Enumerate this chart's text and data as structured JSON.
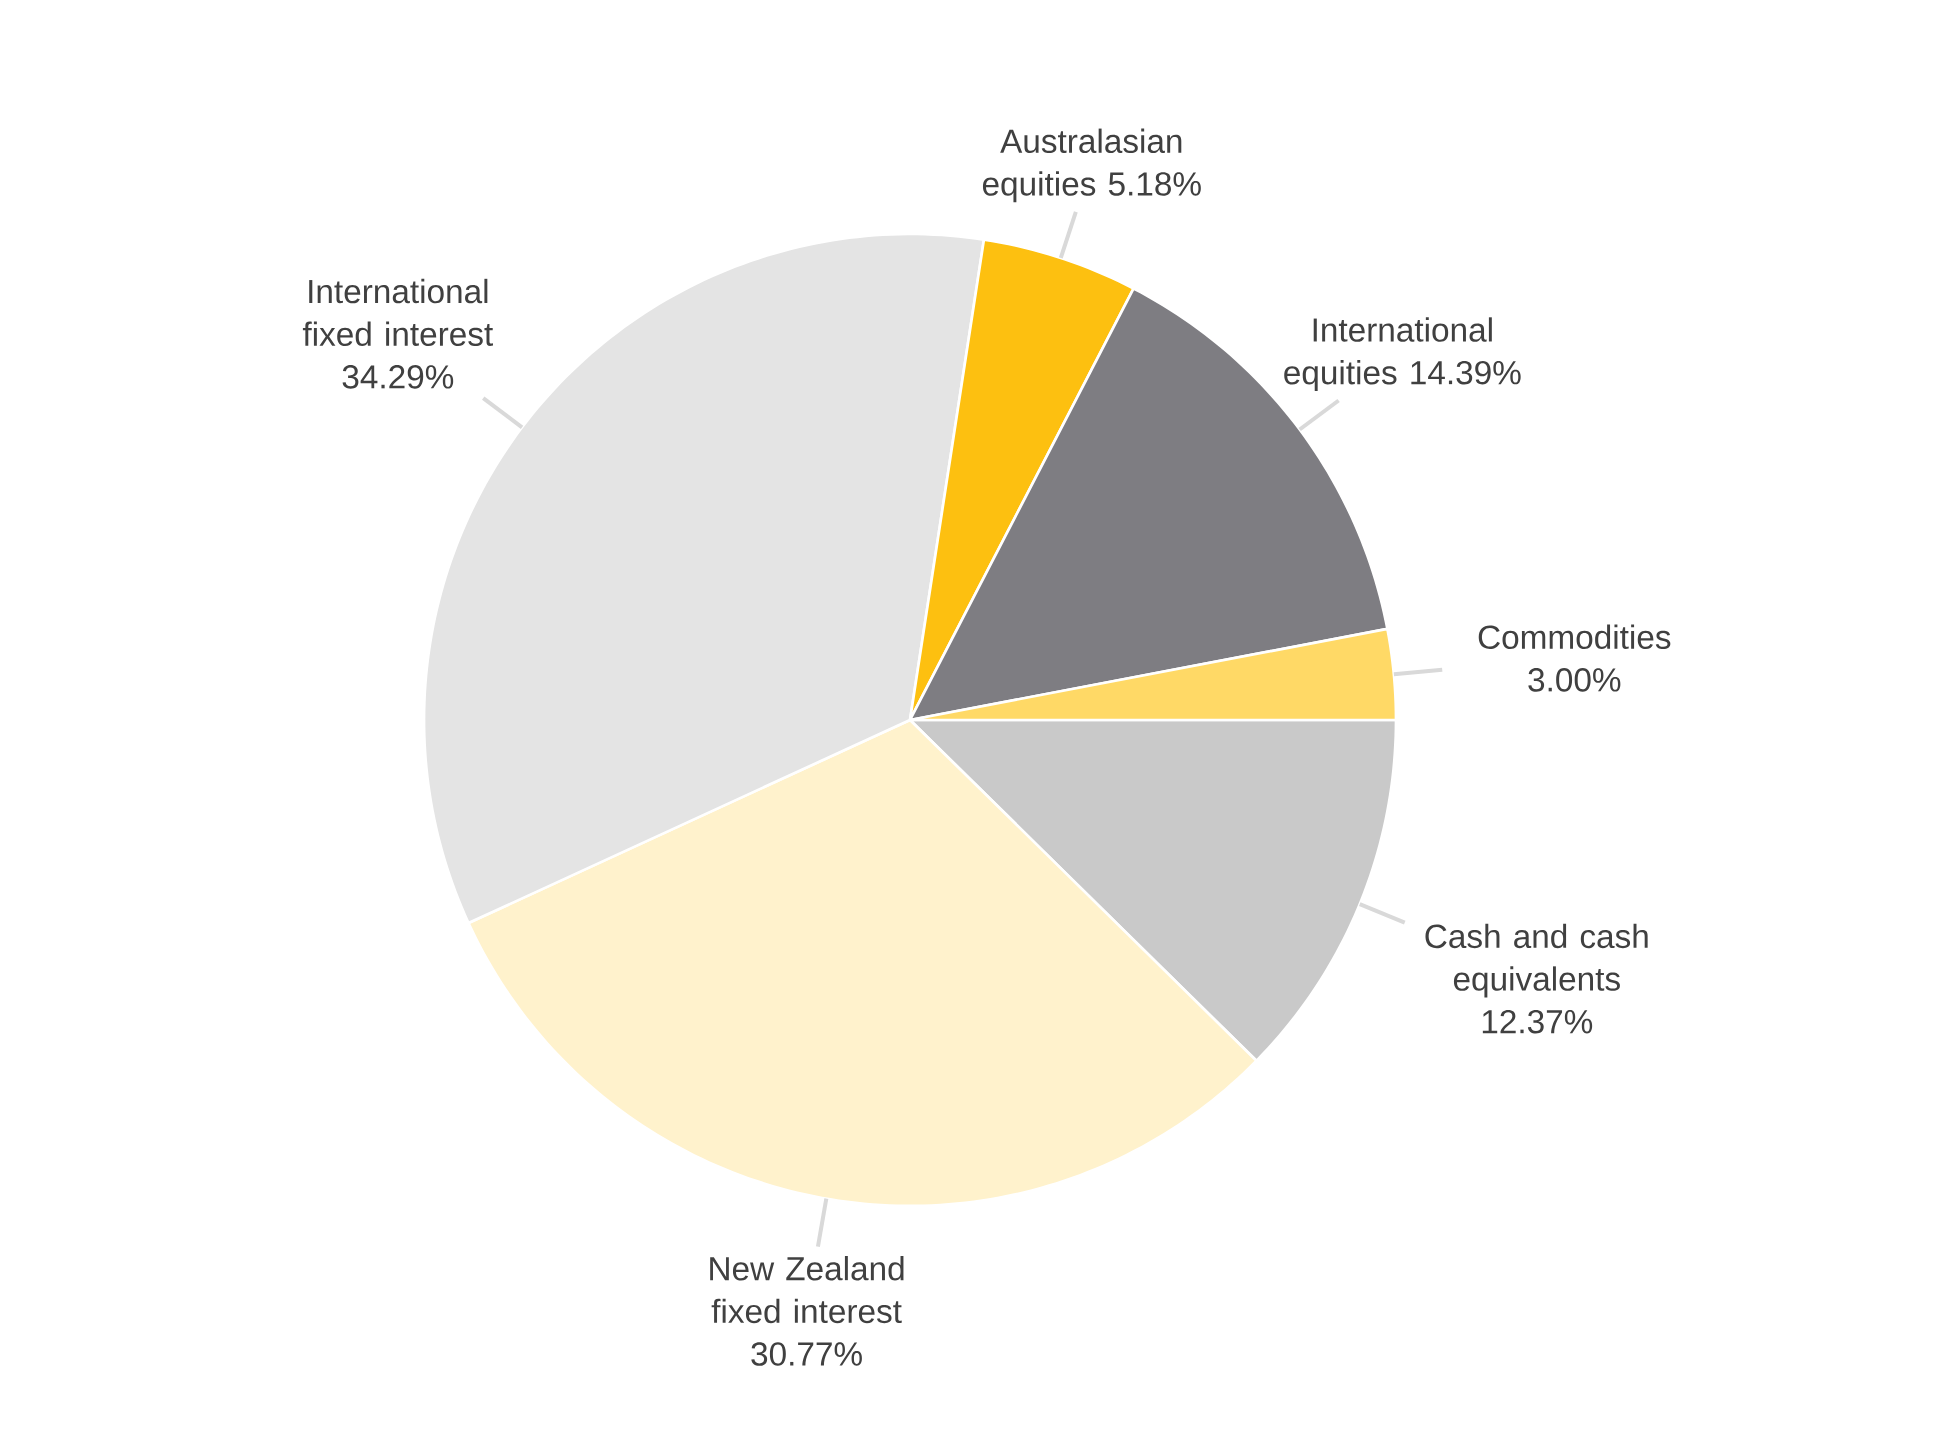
{
  "chart_data": {
    "type": "pie",
    "categories": [
      "Cash and cash equivalents",
      "New Zealand fixed interest",
      "International fixed interest",
      "Australasian equities",
      "International equities",
      "Commodities"
    ],
    "values": [
      12.37,
      30.77,
      34.29,
      5.18,
      14.39,
      3.0
    ],
    "value_labels": [
      "12.37%",
      "30.77%",
      "34.29%",
      "5.18%",
      "14.39%",
      "3.00%"
    ],
    "colors": [
      "#c9c9c9",
      "#fff2cc",
      "#e4e4e4",
      "#fdc010",
      "#7e7d82",
      "#ffd966"
    ]
  }
}
